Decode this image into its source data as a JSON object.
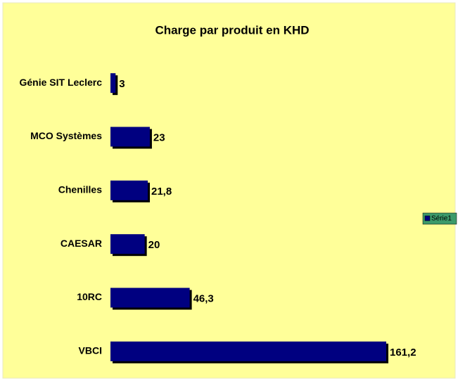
{
  "chart_data": {
    "type": "bar",
    "orientation": "horizontal",
    "title": "Charge par produit en KHD",
    "categories": [
      "Génie SIT Leclerc",
      "MCO Systèmes",
      "Chenilles",
      "CAESAR",
      "10RC",
      "VBCI"
    ],
    "series": [
      {
        "name": "Série1",
        "color": "#000080",
        "values": [
          3,
          23,
          21.8,
          20,
          46.3,
          161.2
        ],
        "value_labels": [
          "3",
          "23",
          "21,8",
          "20",
          "46,3",
          "161,2"
        ]
      }
    ],
    "legend": "right"
  }
}
